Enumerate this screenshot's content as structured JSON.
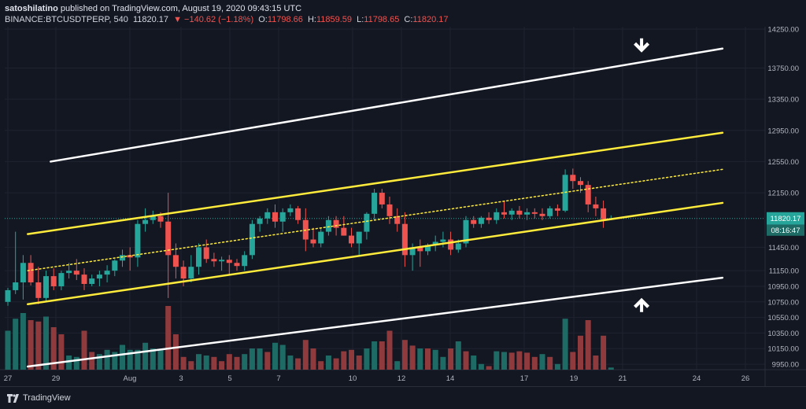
{
  "header": {
    "publisher_line_user": "satoshilatino",
    "publisher_line_rest": " published on TradingView.com, August 19, 2020 09:43:15 UTC",
    "symbol": "BINANCE:BTCUSDTPERP, 540",
    "last": "11820.17",
    "change": "▼ −140.62 (−1.18%)",
    "o_label": "O:",
    "o_value": "11798.66",
    "h_label": "H:",
    "h_value": "11859.59",
    "l_label": "L:",
    "l_value": "11798.65",
    "c_label": "C:",
    "c_value": "11820.17"
  },
  "footer": {
    "brand": "TradingView"
  },
  "colors": {
    "background": "#131722",
    "up": "#26a69a",
    "down": "#ef5350",
    "up_volume": "#1e6b66",
    "down_volume": "#8f3a3c",
    "channel_yellow": "#ffeb3b",
    "channel_white": "#ffffff",
    "grid": "#1f2330",
    "price_tag": "#26a69a"
  },
  "chart_data": {
    "type": "candlestick",
    "timeframe_minutes": 540,
    "price_axis": {
      "ticks": [
        "14250.00",
        "13750.00",
        "13350.00",
        "12950.00",
        "12550.00",
        "12150.00",
        "11450.00",
        "11150.00",
        "10950.00",
        "10750.00",
        "10550.00",
        "10350.00",
        "10150.00",
        "9950.00"
      ],
      "ylim": [
        9880,
        14280
      ]
    },
    "time_axis": {
      "ticks": [
        "27",
        "29",
        "Aug",
        "3",
        "5",
        "7",
        "10",
        "12",
        "14",
        "17",
        "19",
        "21",
        "24",
        "26"
      ]
    },
    "last_price_label": "11820.17",
    "countdown_label": "08:16:47",
    "candles": [
      {
        "o": 10750,
        "h": 10930,
        "l": 10700,
        "c": 10900
      },
      {
        "o": 10900,
        "h": 11650,
        "l": 10850,
        "c": 11000
      },
      {
        "o": 11000,
        "h": 11350,
        "l": 10780,
        "c": 11250
      },
      {
        "o": 11250,
        "h": 11350,
        "l": 10960,
        "c": 11000
      },
      {
        "o": 11000,
        "h": 11200,
        "l": 10720,
        "c": 10800
      },
      {
        "o": 10800,
        "h": 11150,
        "l": 10750,
        "c": 11080
      },
      {
        "o": 11080,
        "h": 11180,
        "l": 10900,
        "c": 10950
      },
      {
        "o": 10950,
        "h": 11150,
        "l": 10900,
        "c": 11120
      },
      {
        "o": 11120,
        "h": 11250,
        "l": 11050,
        "c": 11150
      },
      {
        "o": 11150,
        "h": 11300,
        "l": 11030,
        "c": 11100
      },
      {
        "o": 11100,
        "h": 11180,
        "l": 10900,
        "c": 10980
      },
      {
        "o": 10980,
        "h": 11100,
        "l": 10950,
        "c": 11050
      },
      {
        "o": 11050,
        "h": 11150,
        "l": 10950,
        "c": 11100
      },
      {
        "o": 11100,
        "h": 11220,
        "l": 11000,
        "c": 11150
      },
      {
        "o": 11150,
        "h": 11300,
        "l": 11080,
        "c": 11280
      },
      {
        "o": 11280,
        "h": 11420,
        "l": 11200,
        "c": 11350
      },
      {
        "o": 11350,
        "h": 11450,
        "l": 11150,
        "c": 11320
      },
      {
        "o": 11320,
        "h": 11800,
        "l": 11200,
        "c": 11750
      },
      {
        "o": 11750,
        "h": 11950,
        "l": 11650,
        "c": 11800
      },
      {
        "o": 11800,
        "h": 11920,
        "l": 11750,
        "c": 11850
      },
      {
        "o": 11850,
        "h": 11900,
        "l": 11700,
        "c": 11780
      },
      {
        "o": 11780,
        "h": 12150,
        "l": 10800,
        "c": 11350
      },
      {
        "o": 11350,
        "h": 11500,
        "l": 11050,
        "c": 11200
      },
      {
        "o": 11200,
        "h": 11280,
        "l": 10950,
        "c": 11050
      },
      {
        "o": 11050,
        "h": 11350,
        "l": 11000,
        "c": 11200
      },
      {
        "o": 11200,
        "h": 11500,
        "l": 11100,
        "c": 11450
      },
      {
        "o": 11450,
        "h": 11550,
        "l": 11250,
        "c": 11300
      },
      {
        "o": 11300,
        "h": 11380,
        "l": 11200,
        "c": 11270
      },
      {
        "o": 11270,
        "h": 11330,
        "l": 11150,
        "c": 11290
      },
      {
        "o": 11290,
        "h": 11350,
        "l": 11100,
        "c": 11250
      },
      {
        "o": 11250,
        "h": 11300,
        "l": 11150,
        "c": 11210
      },
      {
        "o": 11210,
        "h": 11400,
        "l": 11150,
        "c": 11350
      },
      {
        "o": 11350,
        "h": 11800,
        "l": 11300,
        "c": 11750
      },
      {
        "o": 11750,
        "h": 11850,
        "l": 11650,
        "c": 11820
      },
      {
        "o": 11820,
        "h": 11950,
        "l": 11750,
        "c": 11900
      },
      {
        "o": 11900,
        "h": 12000,
        "l": 11700,
        "c": 11780
      },
      {
        "o": 11780,
        "h": 11950,
        "l": 11650,
        "c": 11900
      },
      {
        "o": 11900,
        "h": 12000,
        "l": 11850,
        "c": 11950
      },
      {
        "o": 11950,
        "h": 11980,
        "l": 11750,
        "c": 11800
      },
      {
        "o": 11800,
        "h": 11950,
        "l": 11400,
        "c": 11550
      },
      {
        "o": 11550,
        "h": 11700,
        "l": 11450,
        "c": 11500
      },
      {
        "o": 11500,
        "h": 11700,
        "l": 11450,
        "c": 11650
      },
      {
        "o": 11650,
        "h": 11850,
        "l": 11600,
        "c": 11800
      },
      {
        "o": 11800,
        "h": 11850,
        "l": 11600,
        "c": 11700
      },
      {
        "o": 11700,
        "h": 11850,
        "l": 11600,
        "c": 11600
      },
      {
        "o": 11600,
        "h": 11700,
        "l": 11450,
        "c": 11500
      },
      {
        "o": 11500,
        "h": 11650,
        "l": 11350,
        "c": 11650
      },
      {
        "o": 11650,
        "h": 11900,
        "l": 11550,
        "c": 11880
      },
      {
        "o": 11880,
        "h": 12200,
        "l": 11800,
        "c": 12150
      },
      {
        "o": 12150,
        "h": 12200,
        "l": 11950,
        "c": 12000
      },
      {
        "o": 12000,
        "h": 12100,
        "l": 11750,
        "c": 11850
      },
      {
        "o": 11850,
        "h": 11950,
        "l": 11650,
        "c": 11750
      },
      {
        "o": 11750,
        "h": 11900,
        "l": 11200,
        "c": 11350
      },
      {
        "o": 11350,
        "h": 11500,
        "l": 11150,
        "c": 11450
      },
      {
        "o": 11450,
        "h": 11550,
        "l": 11200,
        "c": 11400
      },
      {
        "o": 11400,
        "h": 11500,
        "l": 11350,
        "c": 11480
      },
      {
        "o": 11480,
        "h": 11600,
        "l": 11400,
        "c": 11520
      },
      {
        "o": 11520,
        "h": 11650,
        "l": 11450,
        "c": 11550
      },
      {
        "o": 11550,
        "h": 11650,
        "l": 11350,
        "c": 11420
      },
      {
        "o": 11420,
        "h": 11550,
        "l": 11380,
        "c": 11500
      },
      {
        "o": 11500,
        "h": 11850,
        "l": 11450,
        "c": 11800
      },
      {
        "o": 11800,
        "h": 11850,
        "l": 11700,
        "c": 11750
      },
      {
        "o": 11750,
        "h": 11850,
        "l": 11700,
        "c": 11830
      },
      {
        "o": 11830,
        "h": 11900,
        "l": 11750,
        "c": 11800
      },
      {
        "o": 11800,
        "h": 11950,
        "l": 11750,
        "c": 11900
      },
      {
        "o": 11900,
        "h": 12050,
        "l": 11820,
        "c": 11870
      },
      {
        "o": 11870,
        "h": 11950,
        "l": 11800,
        "c": 11920
      },
      {
        "o": 11920,
        "h": 11980,
        "l": 11820,
        "c": 11870
      },
      {
        "o": 11870,
        "h": 11950,
        "l": 11800,
        "c": 11900
      },
      {
        "o": 11900,
        "h": 11950,
        "l": 11820,
        "c": 11880
      },
      {
        "o": 11880,
        "h": 11950,
        "l": 11800,
        "c": 11850
      },
      {
        "o": 11850,
        "h": 11980,
        "l": 11820,
        "c": 11950
      },
      {
        "o": 11950,
        "h": 12000,
        "l": 11850,
        "c": 11920
      },
      {
        "o": 11920,
        "h": 12450,
        "l": 11900,
        "c": 12380
      },
      {
        "o": 12380,
        "h": 12460,
        "l": 12200,
        "c": 12300
      },
      {
        "o": 12300,
        "h": 12350,
        "l": 12150,
        "c": 12250
      },
      {
        "o": 12250,
        "h": 12300,
        "l": 11900,
        "c": 12000
      },
      {
        "o": 12000,
        "h": 12100,
        "l": 11850,
        "c": 11950
      },
      {
        "o": 11950,
        "h": 12050,
        "l": 11700,
        "c": 11810
      },
      {
        "o": 11810,
        "h": 11860,
        "l": 11800,
        "c": 11820
      }
    ],
    "volumes": [
      {
        "v": 0.55,
        "up": true
      },
      {
        "v": 0.72,
        "up": true
      },
      {
        "v": 0.8,
        "up": true
      },
      {
        "v": 0.7,
        "up": false
      },
      {
        "v": 0.68,
        "up": false
      },
      {
        "v": 0.75,
        "up": true
      },
      {
        "v": 0.6,
        "up": false
      },
      {
        "v": 0.5,
        "up": false
      },
      {
        "v": 0.2,
        "up": true
      },
      {
        "v": 0.18,
        "up": true
      },
      {
        "v": 0.55,
        "up": false
      },
      {
        "v": 0.25,
        "up": false
      },
      {
        "v": 0.22,
        "up": true
      },
      {
        "v": 0.28,
        "up": true
      },
      {
        "v": 0.25,
        "up": true
      },
      {
        "v": 0.35,
        "up": true
      },
      {
        "v": 0.28,
        "up": true
      },
      {
        "v": 0.28,
        "up": true
      },
      {
        "v": 0.38,
        "up": true
      },
      {
        "v": 0.3,
        "up": true
      },
      {
        "v": 0.28,
        "up": true
      },
      {
        "v": 0.9,
        "up": false
      },
      {
        "v": 0.5,
        "up": false
      },
      {
        "v": 0.18,
        "up": false
      },
      {
        "v": 0.12,
        "up": false
      },
      {
        "v": 0.22,
        "up": true
      },
      {
        "v": 0.2,
        "up": true
      },
      {
        "v": 0.18,
        "up": false
      },
      {
        "v": 0.12,
        "up": false
      },
      {
        "v": 0.22,
        "up": false
      },
      {
        "v": 0.18,
        "up": false
      },
      {
        "v": 0.22,
        "up": true
      },
      {
        "v": 0.3,
        "up": true
      },
      {
        "v": 0.3,
        "up": true
      },
      {
        "v": 0.25,
        "up": false
      },
      {
        "v": 0.38,
        "up": true
      },
      {
        "v": 0.35,
        "up": true
      },
      {
        "v": 0.2,
        "up": true
      },
      {
        "v": 0.16,
        "up": false
      },
      {
        "v": 0.42,
        "up": false
      },
      {
        "v": 0.3,
        "up": false
      },
      {
        "v": 0.12,
        "up": false
      },
      {
        "v": 0.2,
        "up": true
      },
      {
        "v": 0.16,
        "up": false
      },
      {
        "v": 0.26,
        "up": false
      },
      {
        "v": 0.28,
        "up": false
      },
      {
        "v": 0.2,
        "up": false
      },
      {
        "v": 0.3,
        "up": true
      },
      {
        "v": 0.4,
        "up": true
      },
      {
        "v": 0.4,
        "up": false
      },
      {
        "v": 0.55,
        "up": false
      },
      {
        "v": 0.12,
        "up": true
      },
      {
        "v": 0.42,
        "up": false
      },
      {
        "v": 0.34,
        "up": false
      },
      {
        "v": 0.3,
        "up": true
      },
      {
        "v": 0.3,
        "up": false
      },
      {
        "v": 0.28,
        "up": true
      },
      {
        "v": 0.18,
        "up": true
      },
      {
        "v": 0.3,
        "up": false
      },
      {
        "v": 0.4,
        "up": true
      },
      {
        "v": 0.26,
        "up": false
      },
      {
        "v": 0.2,
        "up": true
      },
      {
        "v": 0.08,
        "up": true
      },
      {
        "v": 0.05,
        "up": false
      },
      {
        "v": 0.26,
        "up": true
      },
      {
        "v": 0.25,
        "up": true
      },
      {
        "v": 0.24,
        "up": false
      },
      {
        "v": 0.26,
        "up": false
      },
      {
        "v": 0.24,
        "up": false
      },
      {
        "v": 0.18,
        "up": false
      },
      {
        "v": 0.22,
        "up": true
      },
      {
        "v": 0.18,
        "up": false
      },
      {
        "v": 0.08,
        "up": true
      },
      {
        "v": 0.72,
        "up": true
      },
      {
        "v": 0.25,
        "up": false
      },
      {
        "v": 0.48,
        "up": false
      },
      {
        "v": 0.7,
        "up": false
      },
      {
        "v": 0.2,
        "up": false
      },
      {
        "v": 0.48,
        "up": false
      },
      {
        "v": 0.03,
        "up": true
      }
    ],
    "trendlines": [
      {
        "name": "upper-white",
        "color": "#ffffff",
        "style": "solid",
        "from": {
          "x": 2.8,
          "y": 12550
        },
        "to": {
          "x": 46.8,
          "y": 14000
        }
      },
      {
        "name": "upper-yellow",
        "color": "#ffeb3b",
        "style": "solid",
        "from": {
          "x": 1.3,
          "y": 11620
        },
        "to": {
          "x": 46.8,
          "y": 12920
        }
      },
      {
        "name": "mid-yellow",
        "color": "#ffeb3b",
        "style": "dotted",
        "from": {
          "x": 1.3,
          "y": 11150
        },
        "to": {
          "x": 46.8,
          "y": 12450
        }
      },
      {
        "name": "lower-yellow",
        "color": "#ffeb3b",
        "style": "solid",
        "from": {
          "x": 1.3,
          "y": 10720
        },
        "to": {
          "x": 46.8,
          "y": 12020
        }
      },
      {
        "name": "lower-white",
        "color": "#ffffff",
        "style": "solid",
        "from": {
          "x": 1.3,
          "y": 9920
        },
        "to": {
          "x": 46.8,
          "y": 11060
        }
      }
    ],
    "annotations": [
      {
        "name": "down-arrow",
        "symbol": "arrow-down",
        "x": 41.5,
        "y": 14010
      },
      {
        "name": "up-arrow",
        "symbol": "arrow-up",
        "x": 41.5,
        "y": 10740
      }
    ]
  }
}
